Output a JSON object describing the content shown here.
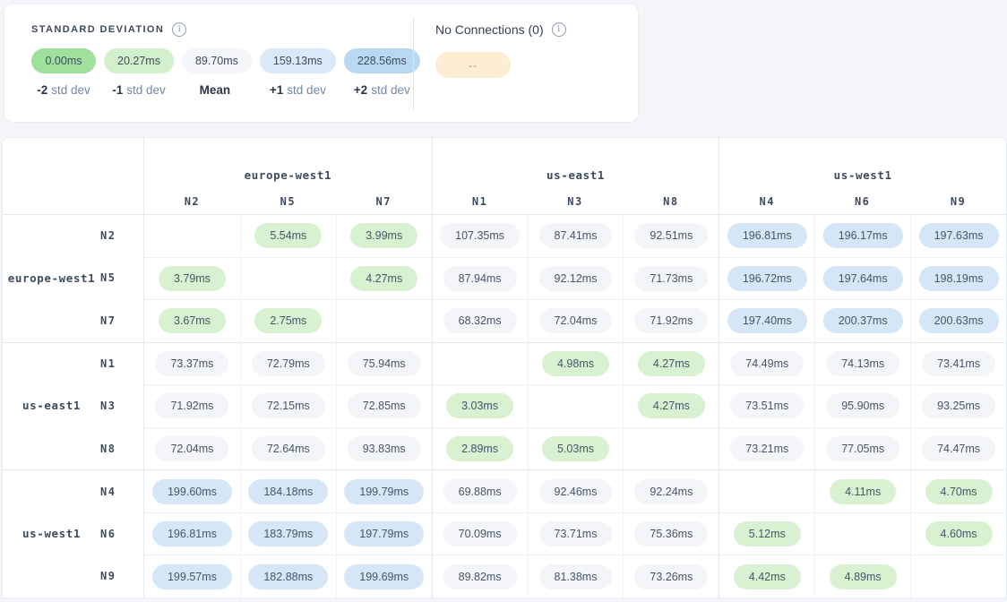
{
  "legend": {
    "title": "STANDARD DEVIATION",
    "stops": [
      {
        "value": "0.00ms",
        "label_prefix": "-2",
        "label_suffix": "std dev",
        "color": "#9fe09c"
      },
      {
        "value": "20.27ms",
        "label_prefix": "-1",
        "label_suffix": "std dev",
        "color": "#d2f0cb"
      },
      {
        "value": "89.70ms",
        "label_prefix": "Mean",
        "label_suffix": "",
        "color": "#f4f6fa"
      },
      {
        "value": "159.13ms",
        "label_prefix": "+1",
        "label_suffix": "std dev",
        "color": "#d9e9f7"
      },
      {
        "value": "228.56ms",
        "label_prefix": "+2",
        "label_suffix": "std dev",
        "color": "#b9d9f3"
      }
    ]
  },
  "no_connections": {
    "title": "No Connections (0)",
    "pill_text": "--",
    "pill_color": "#fdeed3"
  },
  "colors": {
    "cell_green": "#d8f2d1",
    "cell_neutral": "#f3f5f9",
    "cell_blue": "#d5e6f6"
  },
  "matrix": {
    "groups": [
      {
        "name": "europe-west1",
        "nodes": [
          "N2",
          "N5",
          "N7"
        ]
      },
      {
        "name": "us-east1",
        "nodes": [
          "N1",
          "N3",
          "N8"
        ]
      },
      {
        "name": "us-west1",
        "nodes": [
          "N4",
          "N6",
          "N9"
        ]
      }
    ],
    "rows": [
      {
        "region": "europe-west1",
        "node": "N2",
        "cells": [
          "",
          "5.54ms",
          "3.99ms",
          "107.35ms",
          "87.41ms",
          "92.51ms",
          "196.81ms",
          "196.17ms",
          "197.63ms"
        ]
      },
      {
        "region": "europe-west1",
        "node": "N5",
        "cells": [
          "3.79ms",
          "",
          "4.27ms",
          "87.94ms",
          "92.12ms",
          "71.73ms",
          "196.72ms",
          "197.64ms",
          "198.19ms"
        ]
      },
      {
        "region": "europe-west1",
        "node": "N7",
        "cells": [
          "3.67ms",
          "2.75ms",
          "",
          "68.32ms",
          "72.04ms",
          "71.92ms",
          "197.40ms",
          "200.37ms",
          "200.63ms"
        ]
      },
      {
        "region": "us-east1",
        "node": "N1",
        "cells": [
          "73.37ms",
          "72.79ms",
          "75.94ms",
          "",
          "4.98ms",
          "4.27ms",
          "74.49ms",
          "74.13ms",
          "73.41ms"
        ]
      },
      {
        "region": "us-east1",
        "node": "N3",
        "cells": [
          "71.92ms",
          "72.15ms",
          "72.85ms",
          "3.03ms",
          "",
          "4.27ms",
          "73.51ms",
          "95.90ms",
          "93.25ms"
        ]
      },
      {
        "region": "us-east1",
        "node": "N8",
        "cells": [
          "72.04ms",
          "72.64ms",
          "93.83ms",
          "2.89ms",
          "5.03ms",
          "",
          "73.21ms",
          "77.05ms",
          "74.47ms"
        ]
      },
      {
        "region": "us-west1",
        "node": "N4",
        "cells": [
          "199.60ms",
          "184.18ms",
          "199.79ms",
          "69.88ms",
          "92.46ms",
          "92.24ms",
          "",
          "4.11ms",
          "4.70ms"
        ]
      },
      {
        "region": "us-west1",
        "node": "N6",
        "cells": [
          "196.81ms",
          "183.79ms",
          "197.79ms",
          "70.09ms",
          "73.71ms",
          "75.36ms",
          "5.12ms",
          "",
          "4.60ms"
        ]
      },
      {
        "region": "us-west1",
        "node": "N9",
        "cells": [
          "199.57ms",
          "182.88ms",
          "199.69ms",
          "89.82ms",
          "81.38ms",
          "73.26ms",
          "4.42ms",
          "4.89ms",
          ""
        ]
      }
    ]
  }
}
